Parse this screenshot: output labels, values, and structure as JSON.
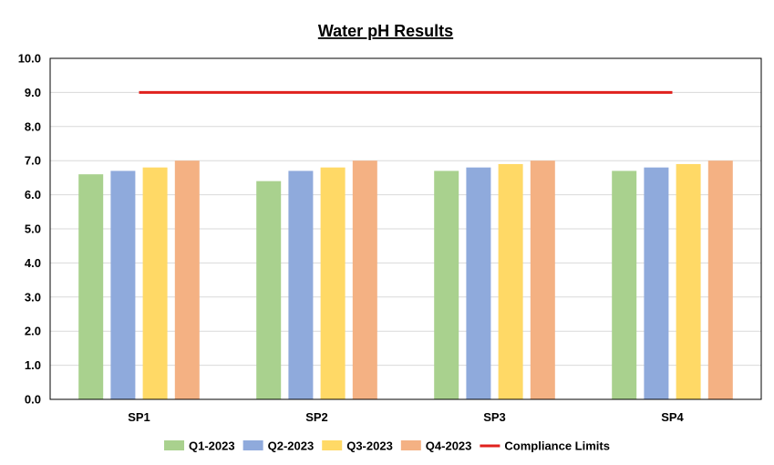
{
  "chart_data": {
    "type": "bar",
    "title": "Water pH Results",
    "xlabel": "",
    "ylabel": "",
    "ylim": [
      0,
      10
    ],
    "ytick_step": 1,
    "ytick_labels": [
      "0.0",
      "1.0",
      "2.0",
      "3.0",
      "4.0",
      "5.0",
      "6.0",
      "7.0",
      "8.0",
      "9.0",
      "10.0"
    ],
    "categories": [
      "SP1",
      "SP2",
      "SP3",
      "SP4"
    ],
    "series": [
      {
        "name": "Q1-2023",
        "values": [
          6.6,
          6.4,
          6.7,
          6.7
        ],
        "color": "#a9d18e"
      },
      {
        "name": "Q2-2023",
        "values": [
          6.7,
          6.7,
          6.8,
          6.8
        ],
        "color": "#8faadc"
      },
      {
        "name": "Q3-2023",
        "values": [
          6.8,
          6.8,
          6.9,
          6.9
        ],
        "color": "#ffd966"
      },
      {
        "name": "Q4-2023",
        "values": [
          7.0,
          7.0,
          7.0,
          7.0
        ],
        "color": "#f4b183"
      }
    ],
    "reference_line": {
      "name": "Compliance Limits",
      "value": 9.0,
      "color": "#e0211d"
    },
    "grid": true,
    "legend_position": "bottom"
  }
}
